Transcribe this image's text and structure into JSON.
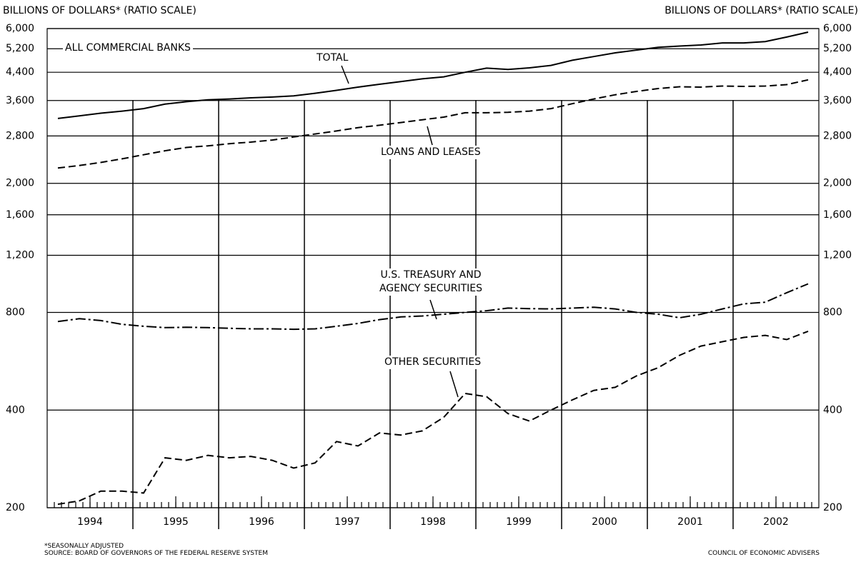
{
  "chart_data": {
    "type": "line",
    "y_label": "BILLIONS OF DOLLARS* (RATIO SCALE)",
    "y2_label": "BILLIONS OF DOLLARS*  (RATIO SCALE)",
    "annotation": "ALL COMMERCIAL BANKS",
    "footnote": "*SEASONALLY ADJUSTED",
    "source": "SOURCE: BOARD OF GOVERNORS OF THE FEDERAL RESERVE SYSTEM",
    "credit": "COUNCIL OF ECONOMIC ADVISERS",
    "log_scale": true,
    "grid": true,
    "xlim": [
      1994,
      2003
    ],
    "xticks": [
      {
        "value": 1994.5,
        "label": "1994"
      },
      {
        "value": 1995.5,
        "label": "1995"
      },
      {
        "value": 1996.5,
        "label": "1996"
      },
      {
        "value": 1997.5,
        "label": "1997"
      },
      {
        "value": 1998.5,
        "label": "1998"
      },
      {
        "value": 1999.5,
        "label": "1999"
      },
      {
        "value": 2000.5,
        "label": "2000"
      },
      {
        "value": 2001.5,
        "label": "2001"
      },
      {
        "value": 2002.5,
        "label": "2002"
      }
    ],
    "ylim": [
      200,
      6000
    ],
    "yticks": [
      200,
      400,
      800,
      {
        "value": 1200,
        "label": "1,200"
      },
      {
        "value": 1600,
        "label": "1,600"
      },
      {
        "value": 2000,
        "label": "2,000"
      },
      {
        "value": 2800,
        "label": "2,800"
      },
      {
        "value": 3600,
        "label": "3,600"
      },
      {
        "value": 4400,
        "label": "4,400"
      },
      {
        "value": 5200,
        "label": "5,200"
      },
      {
        "value": 6000,
        "label": "6,000"
      }
    ],
    "x": [
      1994.125,
      1994.375,
      1994.625,
      1994.875,
      1995.125,
      1995.375,
      1995.625,
      1995.875,
      1996.125,
      1996.375,
      1996.625,
      1996.875,
      1997.125,
      1997.375,
      1997.625,
      1997.875,
      1998.125,
      1998.375,
      1998.625,
      1998.875,
      1999.125,
      1999.375,
      1999.625,
      1999.875,
      2000.125,
      2000.375,
      2000.625,
      2000.875,
      2001.125,
      2001.375,
      2001.625,
      2001.875,
      2002.125,
      2002.375,
      2002.625,
      2002.875
    ],
    "series": [
      {
        "name": "TOTAL",
        "color": "#000000",
        "line_style": "solid",
        "values": [
          3170,
          3230,
          3290,
          3340,
          3400,
          3510,
          3570,
          3620,
          3640,
          3670,
          3690,
          3720,
          3790,
          3870,
          3960,
          4040,
          4120,
          4200,
          4260,
          4400,
          4530,
          4490,
          4540,
          4620,
          4790,
          4920,
          5050,
          5150,
          5250,
          5300,
          5340,
          5420,
          5420,
          5470,
          5650,
          5850
        ]
      },
      {
        "name": "LOANS AND LEASES",
        "color": "#000000",
        "line_style": "dashed",
        "values": [
          2230,
          2270,
          2320,
          2380,
          2450,
          2520,
          2580,
          2610,
          2650,
          2680,
          2720,
          2780,
          2840,
          2900,
          2970,
          3020,
          3080,
          3140,
          3200,
          3300,
          3300,
          3310,
          3340,
          3400,
          3520,
          3640,
          3750,
          3840,
          3920,
          3970,
          3960,
          3990,
          3980,
          3990,
          4030,
          4170
        ]
      },
      {
        "name": "U.S. TREASURY AND AGENCY SECURITIES",
        "color": "#000000",
        "line_style": "dashdot",
        "values": [
          750,
          765,
          755,
          735,
          725,
          718,
          720,
          718,
          715,
          712,
          712,
          710,
          712,
          725,
          740,
          760,
          775,
          780,
          790,
          800,
          810,
          825,
          822,
          820,
          825,
          830,
          820,
          800,
          790,
          770,
          790,
          820,
          850,
          860,
          920,
          980
        ]
      },
      {
        "name": "OTHER SECURITIES",
        "color": "#000000",
        "line_style": "dashed",
        "values": [
          205,
          210,
          225,
          225,
          222,
          285,
          280,
          290,
          285,
          288,
          280,
          265,
          275,
          320,
          310,
          340,
          335,
          345,
          380,
          450,
          440,
          390,
          370,
          400,
          430,
          460,
          470,
          510,
          540,
          590,
          630,
          650,
          670,
          680,
          660,
          700
        ]
      }
    ]
  }
}
